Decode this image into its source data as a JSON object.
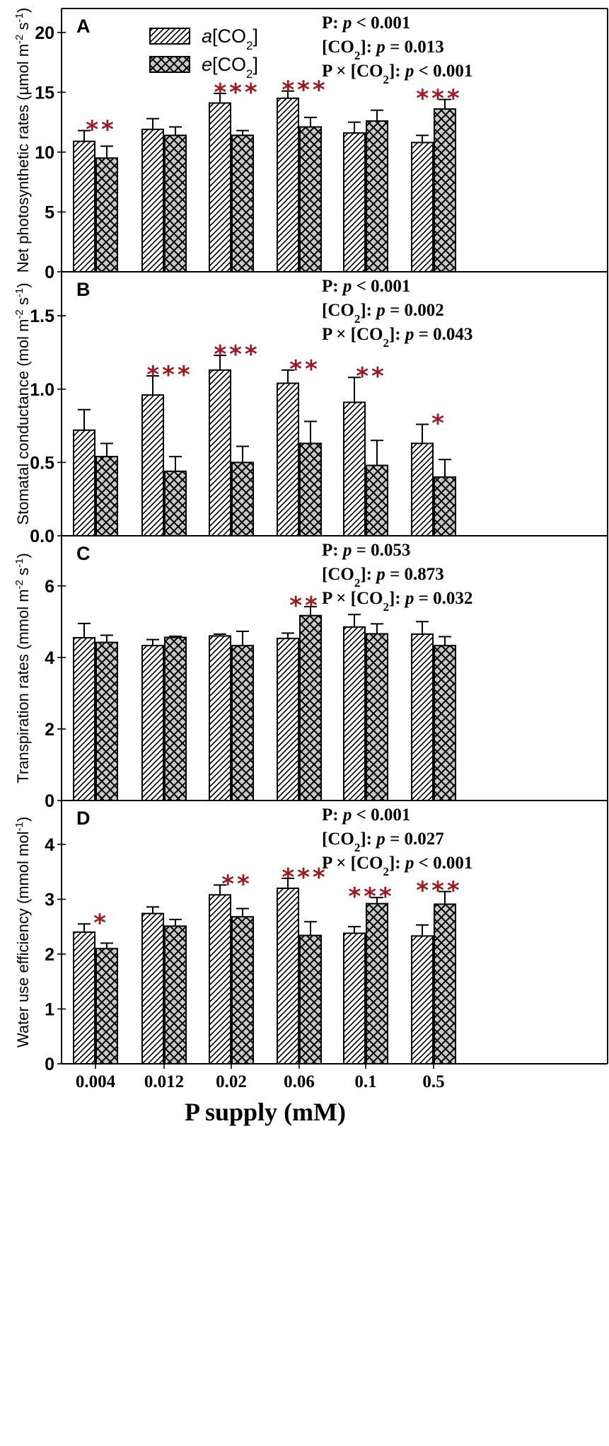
{
  "colors": {
    "significance": "#9b1b23",
    "bar_outline": "#000000",
    "elevated_fill": "#c8c8c8",
    "ambient_fill": "#ffffff"
  },
  "legend": {
    "ambient": {
      "prefix": "a",
      "text": "[CO",
      "sub": "2",
      "close": "]",
      "pattern": "diagonal-hatch"
    },
    "elevated": {
      "prefix": "e",
      "text": "[CO",
      "sub": "2",
      "close": "]",
      "pattern": "cross-hatch"
    }
  },
  "xlabel": "P supply (mM)",
  "categories": [
    "0.004",
    "0.012",
    "0.02",
    "0.06",
    "0.1",
    "0.5"
  ],
  "chart_data": [
    {
      "type": "bar",
      "panel": "A",
      "ylabel": "Net photosynthetic rates (µmol m-2 s-1)",
      "ylim": [
        0,
        22
      ],
      "yticks": [
        0,
        5,
        10,
        15,
        20
      ],
      "categories": [
        "0.004",
        "0.012",
        "0.02",
        "0.06",
        "0.1",
        "0.5"
      ],
      "series": [
        {
          "name": "a[CO2]",
          "values": [
            10.9,
            11.9,
            14.1,
            14.5,
            11.6,
            10.8
          ],
          "errors": [
            0.9,
            0.9,
            0.8,
            0.6,
            0.9,
            0.6
          ]
        },
        {
          "name": "e[CO2]",
          "values": [
            9.5,
            11.4,
            11.4,
            12.1,
            12.6,
            13.6
          ],
          "errors": [
            1.0,
            0.7,
            0.4,
            0.8,
            0.9,
            0.8
          ]
        }
      ],
      "significance": [
        "**",
        "",
        "***",
        "***",
        "",
        "***"
      ],
      "stats": [
        {
          "label": "P: ",
          "value": "p < 0.001"
        },
        {
          "label": "[CO2]: ",
          "value": "p = 0.013"
        },
        {
          "label": "P × [CO2]: ",
          "value": "p < 0.001"
        }
      ]
    },
    {
      "type": "bar",
      "panel": "B",
      "ylabel": "Stomatal conductance (mol m-2 s-1)",
      "ylim": [
        0,
        1.8
      ],
      "yticks": [
        0.0,
        0.5,
        1.0,
        1.5
      ],
      "yticklabels": [
        "0.0",
        "0.5",
        "1.0",
        "1.5"
      ],
      "categories": [
        "0.004",
        "0.012",
        "0.02",
        "0.06",
        "0.1",
        "0.5"
      ],
      "series": [
        {
          "name": "a[CO2]",
          "values": [
            0.72,
            0.96,
            1.13,
            1.04,
            0.91,
            0.63
          ],
          "errors": [
            0.14,
            0.13,
            0.1,
            0.09,
            0.17,
            0.13
          ]
        },
        {
          "name": "e[CO2]",
          "values": [
            0.54,
            0.44,
            0.5,
            0.63,
            0.48,
            0.4
          ],
          "errors": [
            0.09,
            0.1,
            0.11,
            0.15,
            0.17,
            0.12
          ]
        }
      ],
      "significance": [
        "",
        "***",
        "***",
        "**",
        "**",
        "*"
      ],
      "stats": [
        {
          "label": "P: ",
          "value": "p < 0.001"
        },
        {
          "label": "[CO2]: ",
          "value": "p = 0.002"
        },
        {
          "label": "P × [CO2]: ",
          "value": "p = 0.043"
        }
      ]
    },
    {
      "type": "bar",
      "panel": "C",
      "ylabel": "Transpiration rates (mmol m-2 s-1)",
      "ylim": [
        0,
        7.4
      ],
      "yticks": [
        0,
        2,
        4,
        6
      ],
      "categories": [
        "0.004",
        "0.012",
        "0.02",
        "0.06",
        "0.1",
        "0.5"
      ],
      "series": [
        {
          "name": "a[CO2]",
          "values": [
            4.55,
            4.33,
            4.6,
            4.53,
            4.85,
            4.65
          ],
          "errors": [
            0.4,
            0.17,
            0.05,
            0.15,
            0.35,
            0.35
          ]
        },
        {
          "name": "e[CO2]",
          "values": [
            4.42,
            4.56,
            4.33,
            5.17,
            4.66,
            4.33
          ],
          "errors": [
            0.2,
            0.03,
            0.4,
            0.25,
            0.28,
            0.25
          ]
        }
      ],
      "significance": [
        "",
        "",
        "",
        "**",
        "",
        ""
      ],
      "stats": [
        {
          "label": "P: ",
          "value": "p = 0.053"
        },
        {
          "label": "[CO2]: ",
          "value": "p = 0.873"
        },
        {
          "label": "P × [CO2]: ",
          "value": "p = 0.032"
        }
      ]
    },
    {
      "type": "bar",
      "panel": "D",
      "ylabel": "Water use efficiency (mmol mol-1)",
      "ylim": [
        0,
        4.8
      ],
      "yticks": [
        0,
        1,
        2,
        3,
        4
      ],
      "categories": [
        "0.004",
        "0.012",
        "0.02",
        "0.06",
        "0.1",
        "0.5"
      ],
      "series": [
        {
          "name": "a[CO2]",
          "values": [
            2.4,
            2.74,
            3.08,
            3.2,
            2.38,
            2.33
          ],
          "errors": [
            0.15,
            0.12,
            0.18,
            0.18,
            0.12,
            0.2
          ]
        },
        {
          "name": "e[CO2]",
          "values": [
            2.1,
            2.51,
            2.68,
            2.34,
            2.92,
            2.91
          ],
          "errors": [
            0.1,
            0.12,
            0.15,
            0.25,
            0.11,
            0.23
          ]
        }
      ],
      "significance": [
        "*",
        "",
        "**",
        "***",
        "***",
        "***"
      ],
      "stats": [
        {
          "label": "P: ",
          "value": "p < 0.001"
        },
        {
          "label": "[CO2]: ",
          "value": "p = 0.027"
        },
        {
          "label": "P × [CO2]: ",
          "value": "p < 0.001"
        }
      ]
    }
  ]
}
